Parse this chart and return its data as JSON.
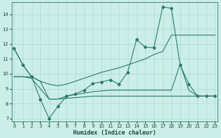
{
  "xlabel": "Humidex (Indice chaleur)",
  "xlim": [
    -0.3,
    23.3
  ],
  "ylim": [
    6.8,
    14.8
  ],
  "yticks": [
    7,
    8,
    9,
    10,
    11,
    12,
    13,
    14
  ],
  "xticks": [
    0,
    1,
    2,
    3,
    4,
    5,
    6,
    7,
    8,
    9,
    10,
    11,
    12,
    13,
    14,
    15,
    16,
    17,
    18,
    19,
    20,
    21,
    22,
    23
  ],
  "bg_color": "#cceee8",
  "line_color": "#2a7a6a",
  "grid_color": "#aad8d0",
  "line1_x": [
    0,
    1,
    2,
    3,
    4,
    5,
    6,
    7,
    8,
    9,
    10,
    11,
    12,
    13,
    14,
    15,
    16,
    17,
    18,
    19,
    20,
    21,
    22,
    23
  ],
  "line1_y": [
    11.7,
    10.6,
    9.8,
    8.3,
    7.0,
    7.8,
    8.5,
    8.65,
    8.9,
    9.35,
    9.45,
    9.6,
    9.3,
    10.1,
    12.3,
    11.8,
    11.75,
    14.5,
    14.4,
    10.6,
    9.3,
    8.5,
    8.5,
    8.5
  ],
  "line2_x": [
    0,
    1,
    2,
    3,
    4,
    5,
    6,
    7,
    8,
    9,
    10,
    11,
    12,
    13,
    14,
    15,
    16,
    17,
    18,
    19,
    20,
    21,
    22,
    23
  ],
  "line2_y": [
    11.7,
    10.6,
    9.8,
    9.5,
    9.3,
    9.2,
    9.3,
    9.5,
    9.7,
    9.9,
    10.1,
    10.25,
    10.4,
    10.6,
    10.8,
    11.0,
    11.3,
    11.5,
    12.6,
    12.6,
    12.6,
    12.6,
    12.6,
    12.6
  ],
  "line3_x": [
    0,
    1,
    2,
    3,
    4,
    5,
    6,
    7,
    8,
    9,
    10,
    11,
    12,
    13,
    14,
    15,
    16,
    17,
    18,
    19,
    20,
    21,
    22,
    23
  ],
  "line3_y": [
    9.8,
    9.8,
    9.7,
    9.0,
    8.3,
    8.3,
    8.35,
    8.4,
    8.45,
    8.5,
    8.5,
    8.5,
    8.5,
    8.5,
    8.5,
    8.5,
    8.5,
    8.5,
    8.5,
    8.5,
    8.5,
    8.5,
    8.5,
    8.5
  ],
  "line4_x": [
    0,
    1,
    2,
    3,
    4,
    5,
    6,
    7,
    8,
    9,
    10,
    11,
    12,
    13,
    14,
    15,
    16,
    17,
    18,
    19,
    20,
    21,
    22,
    23
  ],
  "line4_y": [
    9.8,
    9.8,
    9.8,
    9.5,
    8.3,
    8.3,
    8.5,
    8.6,
    8.7,
    8.8,
    8.85,
    8.9,
    8.9,
    8.9,
    8.9,
    8.9,
    8.9,
    8.9,
    8.9,
    10.65,
    8.9,
    8.5,
    8.5,
    8.5
  ]
}
